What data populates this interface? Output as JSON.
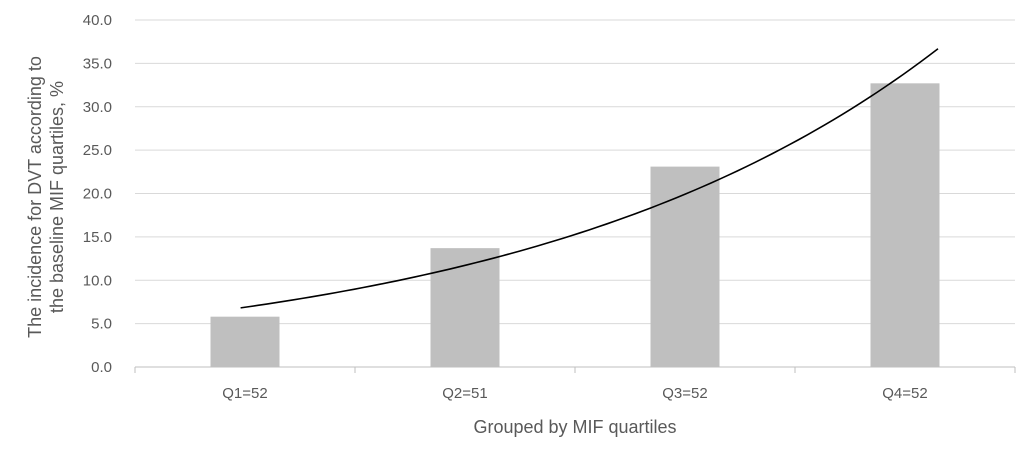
{
  "chart_data": {
    "type": "bar",
    "title": "",
    "xlabel": "Grouped by MIF quartiles",
    "ylabel_lines": [
      "The incidence for DVT according to",
      "the baseline MIF quartiles, %"
    ],
    "categories": [
      "Q1=52",
      "Q2=51",
      "Q3=52",
      "Q4=52"
    ],
    "values": [
      5.8,
      13.7,
      23.1,
      32.7
    ],
    "ylim": [
      0,
      40
    ],
    "yticks": [
      "0.0",
      "5.0",
      "10.0",
      "15.0",
      "20.0",
      "25.0",
      "30.0",
      "35.0",
      "40.0"
    ],
    "grid": true,
    "legend": "none",
    "trendline": {
      "type": "exponential",
      "x": [
        0.98,
        2.0,
        3.0,
        4.0,
        4.15
      ],
      "y": [
        6.7,
        12.0,
        20.0,
        33.3,
        36.9
      ]
    },
    "colors": {
      "bar": "#bfbfbf",
      "trendline": "#000000",
      "grid": "#d9d9d9",
      "axis": "#bfbfbf",
      "text": "#595959"
    }
  }
}
